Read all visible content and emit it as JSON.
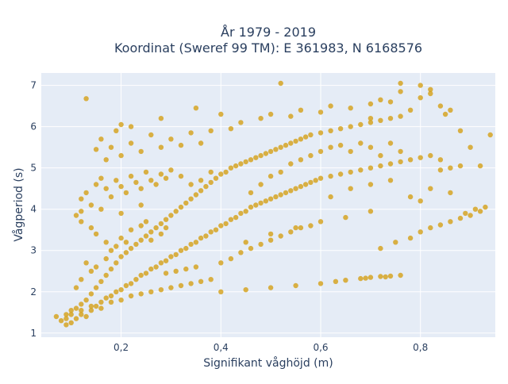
{
  "chart_data": {
    "type": "scatter",
    "title_line1": "År 1979 - 2019",
    "title_line2": "Koordinat (Sweref 99 TM): E 361983, N 6168576",
    "xlabel": "Signifikant våghöjd (m)",
    "ylabel": "Vågperiod (s)",
    "xlim": [
      0.04,
      0.95
    ],
    "ylim": [
      0.9,
      7.3
    ],
    "x_ticks": [
      0.2,
      0.4,
      0.6,
      0.8
    ],
    "x_tick_labels": [
      "0,2",
      "0,4",
      "0,6",
      "0,8"
    ],
    "y_ticks": [
      1,
      2,
      3,
      4,
      5,
      6,
      7
    ],
    "y_tick_labels": [
      "1",
      "2",
      "3",
      "4",
      "5",
      "6",
      "7"
    ],
    "grid": true,
    "legend": "none",
    "colors": {
      "marker": "#d4a017",
      "plot_bg": "#e5ecf6",
      "grid": "#ffffff"
    },
    "series": [
      {
        "points": [
          [
            0.07,
            1.4
          ],
          [
            0.08,
            1.3
          ],
          [
            0.09,
            1.2
          ],
          [
            0.09,
            1.45
          ],
          [
            0.1,
            1.25
          ],
          [
            0.1,
            1.55
          ],
          [
            0.11,
            1.35
          ],
          [
            0.11,
            1.6
          ],
          [
            0.12,
            1.45
          ],
          [
            0.12,
            1.7
          ],
          [
            0.13,
            1.4
          ],
          [
            0.13,
            1.8
          ],
          [
            0.14,
            1.55
          ],
          [
            0.14,
            1.95
          ],
          [
            0.15,
            1.65
          ],
          [
            0.15,
            2.1
          ],
          [
            0.16,
            1.75
          ],
          [
            0.16,
            2.25
          ],
          [
            0.17,
            1.85
          ],
          [
            0.17,
            2.4
          ],
          [
            0.18,
            1.9
          ],
          [
            0.18,
            2.55
          ],
          [
            0.19,
            2.0
          ],
          [
            0.19,
            2.7
          ],
          [
            0.2,
            2.05
          ],
          [
            0.2,
            2.85
          ],
          [
            0.21,
            2.15
          ],
          [
            0.21,
            2.95
          ],
          [
            0.22,
            2.2
          ],
          [
            0.22,
            3.05
          ],
          [
            0.23,
            2.3
          ],
          [
            0.23,
            3.15
          ],
          [
            0.24,
            2.4
          ],
          [
            0.24,
            3.25
          ],
          [
            0.25,
            2.45
          ],
          [
            0.25,
            3.35
          ],
          [
            0.26,
            2.55
          ],
          [
            0.26,
            3.45
          ],
          [
            0.27,
            2.6
          ],
          [
            0.27,
            3.55
          ],
          [
            0.28,
            2.7
          ],
          [
            0.28,
            3.65
          ],
          [
            0.29,
            2.75
          ],
          [
            0.29,
            3.75
          ],
          [
            0.3,
            2.85
          ],
          [
            0.3,
            3.85
          ],
          [
            0.31,
            2.9
          ],
          [
            0.31,
            3.95
          ],
          [
            0.32,
            3.0
          ],
          [
            0.32,
            4.05
          ],
          [
            0.33,
            3.05
          ],
          [
            0.33,
            4.15
          ],
          [
            0.34,
            3.15
          ],
          [
            0.34,
            4.25
          ],
          [
            0.35,
            3.2
          ],
          [
            0.35,
            4.35
          ],
          [
            0.36,
            3.3
          ],
          [
            0.36,
            4.45
          ],
          [
            0.37,
            3.35
          ],
          [
            0.37,
            4.55
          ],
          [
            0.38,
            3.45
          ],
          [
            0.38,
            4.65
          ],
          [
            0.39,
            3.5
          ],
          [
            0.39,
            4.75
          ],
          [
            0.4,
            3.6
          ],
          [
            0.4,
            4.85
          ],
          [
            0.41,
            3.65
          ],
          [
            0.41,
            4.9
          ],
          [
            0.42,
            3.75
          ],
          [
            0.42,
            5.0
          ],
          [
            0.43,
            3.8
          ],
          [
            0.43,
            5.05
          ],
          [
            0.44,
            3.9
          ],
          [
            0.44,
            5.1
          ],
          [
            0.45,
            3.95
          ],
          [
            0.45,
            5.15
          ],
          [
            0.46,
            4.05
          ],
          [
            0.46,
            5.2
          ],
          [
            0.47,
            4.1
          ],
          [
            0.47,
            5.25
          ],
          [
            0.48,
            4.15
          ],
          [
            0.48,
            5.3
          ],
          [
            0.49,
            4.2
          ],
          [
            0.49,
            5.35
          ],
          [
            0.5,
            4.25
          ],
          [
            0.5,
            5.4
          ],
          [
            0.51,
            4.3
          ],
          [
            0.51,
            5.45
          ],
          [
            0.52,
            4.35
          ],
          [
            0.52,
            5.5
          ],
          [
            0.53,
            4.4
          ],
          [
            0.53,
            5.55
          ],
          [
            0.54,
            4.45
          ],
          [
            0.54,
            5.6
          ],
          [
            0.55,
            4.5
          ],
          [
            0.55,
            5.65
          ],
          [
            0.56,
            4.55
          ],
          [
            0.56,
            5.7
          ],
          [
            0.57,
            4.6
          ],
          [
            0.57,
            5.75
          ],
          [
            0.58,
            4.65
          ],
          [
            0.58,
            5.8
          ],
          [
            0.59,
            4.7
          ],
          [
            0.6,
            4.75
          ],
          [
            0.6,
            5.85
          ],
          [
            0.62,
            4.8
          ],
          [
            0.62,
            5.9
          ],
          [
            0.64,
            4.85
          ],
          [
            0.64,
            5.95
          ],
          [
            0.66,
            4.9
          ],
          [
            0.66,
            6.0
          ],
          [
            0.68,
            4.95
          ],
          [
            0.68,
            6.05
          ],
          [
            0.7,
            5.0
          ],
          [
            0.7,
            6.1
          ],
          [
            0.72,
            5.05
          ],
          [
            0.72,
            6.15
          ],
          [
            0.74,
            5.1
          ],
          [
            0.74,
            6.2
          ],
          [
            0.76,
            5.15
          ],
          [
            0.76,
            6.25
          ],
          [
            0.78,
            5.2
          ],
          [
            0.8,
            5.25
          ],
          [
            0.82,
            5.3
          ],
          [
            0.84,
            5.2
          ],
          [
            0.86,
            5.0
          ],
          [
            0.88,
            5.05
          ],
          [
            0.92,
            5.05
          ],
          [
            0.45,
            3.2
          ],
          [
            0.5,
            3.4
          ],
          [
            0.55,
            3.55
          ],
          [
            0.6,
            3.7
          ],
          [
            0.65,
            3.8
          ],
          [
            0.7,
            3.95
          ],
          [
            0.72,
            3.05
          ],
          [
            0.75,
            3.2
          ],
          [
            0.78,
            3.3
          ],
          [
            0.8,
            3.45
          ],
          [
            0.82,
            3.55
          ],
          [
            0.84,
            3.62
          ],
          [
            0.86,
            3.7
          ],
          [
            0.88,
            3.78
          ],
          [
            0.9,
            3.85
          ],
          [
            0.92,
            3.95
          ],
          [
            0.93,
            4.05
          ],
          [
            0.91,
            4.0
          ],
          [
            0.89,
            3.9
          ],
          [
            0.4,
            2.0
          ],
          [
            0.45,
            2.05
          ],
          [
            0.5,
            2.1
          ],
          [
            0.55,
            2.15
          ],
          [
            0.6,
            2.2
          ],
          [
            0.63,
            2.25
          ],
          [
            0.65,
            2.28
          ],
          [
            0.68,
            2.32
          ],
          [
            0.7,
            2.35
          ],
          [
            0.72,
            2.37
          ],
          [
            0.74,
            2.38
          ],
          [
            0.76,
            2.4
          ],
          [
            0.73,
            2.36
          ],
          [
            0.69,
            2.33
          ],
          [
            0.11,
            3.85
          ],
          [
            0.12,
            3.95
          ],
          [
            0.13,
            4.4
          ],
          [
            0.14,
            4.1
          ],
          [
            0.15,
            4.6
          ],
          [
            0.16,
            4.75
          ],
          [
            0.17,
            4.5
          ],
          [
            0.18,
            4.3
          ],
          [
            0.19,
            4.7
          ],
          [
            0.2,
            4.55
          ],
          [
            0.21,
            4.4
          ],
          [
            0.22,
            4.8
          ],
          [
            0.23,
            4.65
          ],
          [
            0.24,
            4.5
          ],
          [
            0.25,
            4.9
          ],
          [
            0.26,
            4.7
          ],
          [
            0.27,
            4.6
          ],
          [
            0.28,
            4.85
          ],
          [
            0.29,
            4.75
          ],
          [
            0.3,
            4.95
          ],
          [
            0.32,
            4.8
          ],
          [
            0.34,
            4.6
          ],
          [
            0.36,
            4.7
          ],
          [
            0.38,
            4.9
          ],
          [
            0.12,
            4.25
          ],
          [
            0.16,
            4.0
          ],
          [
            0.2,
            3.9
          ],
          [
            0.24,
            4.1
          ],
          [
            0.15,
            5.45
          ],
          [
            0.16,
            5.7
          ],
          [
            0.17,
            5.2
          ],
          [
            0.18,
            5.5
          ],
          [
            0.19,
            5.9
          ],
          [
            0.2,
            5.3
          ],
          [
            0.22,
            5.6
          ],
          [
            0.24,
            5.4
          ],
          [
            0.26,
            5.8
          ],
          [
            0.28,
            5.5
          ],
          [
            0.3,
            5.7
          ],
          [
            0.32,
            5.55
          ],
          [
            0.34,
            5.85
          ],
          [
            0.36,
            5.6
          ],
          [
            0.38,
            5.9
          ],
          [
            0.42,
            5.95
          ],
          [
            0.44,
            6.1
          ],
          [
            0.48,
            6.2
          ],
          [
            0.5,
            6.3
          ],
          [
            0.54,
            6.25
          ],
          [
            0.56,
            6.4
          ],
          [
            0.6,
            6.35
          ],
          [
            0.62,
            6.5
          ],
          [
            0.66,
            6.45
          ],
          [
            0.7,
            6.55
          ],
          [
            0.74,
            6.6
          ],
          [
            0.78,
            6.4
          ],
          [
            0.8,
            6.7
          ],
          [
            0.82,
            6.8
          ],
          [
            0.84,
            6.5
          ],
          [
            0.86,
            6.4
          ],
          [
            0.76,
            6.85
          ],
          [
            0.72,
            6.65
          ],
          [
            0.7,
            6.2
          ],
          [
            0.13,
            6.68
          ],
          [
            0.2,
            6.05
          ],
          [
            0.22,
            6.0
          ],
          [
            0.52,
            7.05
          ],
          [
            0.76,
            7.05
          ],
          [
            0.8,
            7.0
          ],
          [
            0.82,
            6.9
          ],
          [
            0.28,
            6.2
          ],
          [
            0.35,
            6.45
          ],
          [
            0.4,
            6.3
          ],
          [
            0.85,
            6.3
          ],
          [
            0.88,
            5.9
          ],
          [
            0.9,
            5.5
          ],
          [
            0.94,
            5.8
          ],
          [
            0.84,
            4.95
          ],
          [
            0.86,
            4.4
          ],
          [
            0.82,
            4.5
          ],
          [
            0.8,
            4.2
          ],
          [
            0.78,
            4.3
          ],
          [
            0.12,
            3.7
          ],
          [
            0.14,
            3.55
          ],
          [
            0.15,
            3.4
          ],
          [
            0.17,
            3.2
          ],
          [
            0.18,
            3.0
          ],
          [
            0.2,
            3.3
          ],
          [
            0.22,
            3.5
          ],
          [
            0.24,
            3.6
          ],
          [
            0.26,
            3.25
          ],
          [
            0.28,
            3.4
          ],
          [
            0.11,
            2.1
          ],
          [
            0.12,
            2.3
          ],
          [
            0.13,
            2.7
          ],
          [
            0.14,
            2.5
          ],
          [
            0.15,
            2.6
          ],
          [
            0.17,
            2.8
          ],
          [
            0.19,
            3.1
          ],
          [
            0.21,
            3.2
          ],
          [
            0.25,
            3.7
          ],
          [
            0.29,
            3.55
          ],
          [
            0.09,
            1.35
          ],
          [
            0.1,
            1.45
          ],
          [
            0.12,
            1.55
          ],
          [
            0.14,
            1.65
          ],
          [
            0.16,
            1.6
          ],
          [
            0.18,
            1.75
          ],
          [
            0.2,
            1.8
          ],
          [
            0.22,
            1.9
          ],
          [
            0.24,
            1.95
          ],
          [
            0.26,
            2.0
          ],
          [
            0.28,
            2.05
          ],
          [
            0.3,
            2.1
          ],
          [
            0.32,
            2.15
          ],
          [
            0.34,
            2.2
          ],
          [
            0.36,
            2.25
          ],
          [
            0.38,
            2.3
          ],
          [
            0.35,
            2.6
          ],
          [
            0.33,
            2.55
          ],
          [
            0.31,
            2.5
          ],
          [
            0.29,
            2.45
          ],
          [
            0.4,
            2.7
          ],
          [
            0.42,
            2.8
          ],
          [
            0.44,
            2.95
          ],
          [
            0.46,
            3.05
          ],
          [
            0.48,
            3.15
          ],
          [
            0.5,
            3.25
          ],
          [
            0.52,
            3.35
          ],
          [
            0.54,
            3.45
          ],
          [
            0.56,
            3.55
          ],
          [
            0.58,
            3.6
          ],
          [
            0.46,
            4.4
          ],
          [
            0.48,
            4.6
          ],
          [
            0.5,
            4.8
          ],
          [
            0.52,
            4.9
          ],
          [
            0.54,
            5.1
          ],
          [
            0.56,
            5.2
          ],
          [
            0.58,
            5.3
          ],
          [
            0.6,
            5.4
          ],
          [
            0.62,
            5.5
          ],
          [
            0.64,
            5.55
          ],
          [
            0.66,
            5.4
          ],
          [
            0.68,
            5.6
          ],
          [
            0.7,
            5.5
          ],
          [
            0.72,
            5.3
          ],
          [
            0.74,
            5.6
          ],
          [
            0.76,
            5.4
          ],
          [
            0.62,
            4.3
          ],
          [
            0.66,
            4.5
          ],
          [
            0.7,
            4.6
          ],
          [
            0.74,
            4.7
          ]
        ]
      }
    ]
  }
}
